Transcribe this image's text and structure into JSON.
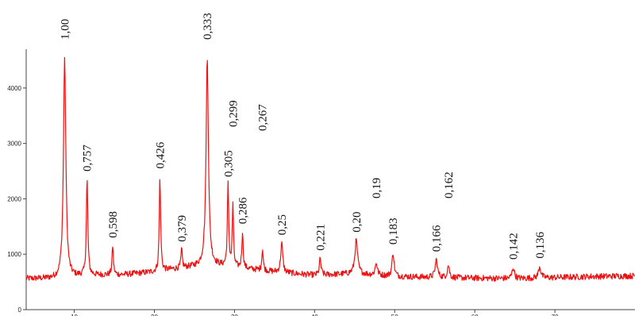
{
  "chart_data": {
    "type": "line",
    "title": "",
    "xlabel": "",
    "ylabel": "",
    "line_color": "#ee1111",
    "grid": false,
    "xlim": [
      4,
      80
    ],
    "ylim": [
      0,
      4700
    ],
    "y_ticks": [
      "0",
      "1000",
      "2000",
      "3000",
      "4000"
    ],
    "y_tick_values": [
      0,
      1000,
      2000,
      3000,
      4000
    ],
    "x_ticks": [
      "10",
      "20",
      "30",
      "40",
      "50",
      "60",
      "70"
    ],
    "x_tick_values": [
      10,
      20,
      30,
      40,
      50,
      60,
      70
    ],
    "baseline": [
      [
        4,
        560
      ],
      [
        8,
        560
      ],
      [
        12,
        620
      ],
      [
        16,
        630
      ],
      [
        20,
        680
      ],
      [
        24,
        760
      ],
      [
        27,
        800
      ],
      [
        30,
        760
      ],
      [
        35,
        680
      ],
      [
        40,
        620
      ],
      [
        45,
        650
      ],
      [
        50,
        600
      ],
      [
        55,
        580
      ],
      [
        60,
        570
      ],
      [
        65,
        560
      ],
      [
        70,
        580
      ],
      [
        75,
        600
      ],
      [
        80,
        610
      ]
    ],
    "peaks": [
      {
        "x": 8.8,
        "y": 4550,
        "w": 0.35,
        "label": "1,00"
      },
      {
        "x": 11.6,
        "y": 2350,
        "w": 0.22,
        "label": "0,757"
      },
      {
        "x": 14.8,
        "y": 1150,
        "w": 0.2,
        "label": "0,598"
      },
      {
        "x": 20.7,
        "y": 2400,
        "w": 0.2,
        "label": "0,426"
      },
      {
        "x": 23.4,
        "y": 1080,
        "w": 0.2,
        "label": "0,379"
      },
      {
        "x": 26.6,
        "y": 4550,
        "w": 0.35,
        "label": "0,333"
      },
      {
        "x": 29.2,
        "y": 2250,
        "w": 0.2,
        "label": "0,305"
      },
      {
        "x": 29.8,
        "y": 1900,
        "w": 0.18,
        "label": "0,299"
      },
      {
        "x": 31.0,
        "y": 1400,
        "w": 0.2,
        "label": "0,286"
      },
      {
        "x": 33.5,
        "y": 1100,
        "w": 0.2,
        "label": "0,267"
      },
      {
        "x": 35.9,
        "y": 1200,
        "w": 0.3,
        "label": "0,25"
      },
      {
        "x": 40.7,
        "y": 920,
        "w": 0.25,
        "label": "0,221"
      },
      {
        "x": 45.2,
        "y": 1250,
        "w": 0.4,
        "label": "0,20"
      },
      {
        "x": 47.7,
        "y": 850,
        "w": 0.3,
        "label": "0,19"
      },
      {
        "x": 49.8,
        "y": 1030,
        "w": 0.3,
        "label": "0,183"
      },
      {
        "x": 55.2,
        "y": 900,
        "w": 0.35,
        "label": "0,166"
      },
      {
        "x": 56.7,
        "y": 800,
        "w": 0.3,
        "label": "0,162"
      },
      {
        "x": 64.8,
        "y": 760,
        "w": 0.35,
        "label": "0,142"
      },
      {
        "x": 68.1,
        "y": 780,
        "w": 0.35,
        "label": "0,136"
      }
    ]
  }
}
